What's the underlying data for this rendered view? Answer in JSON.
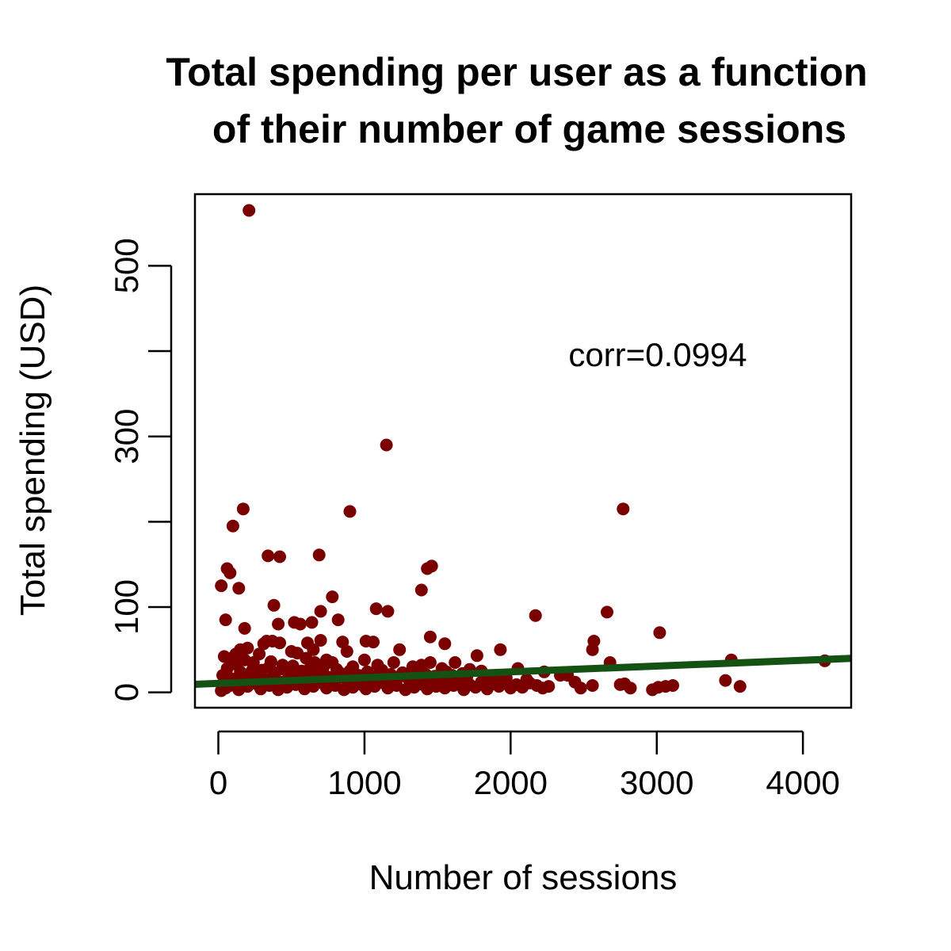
{
  "chart_data": {
    "type": "scatter",
    "title": [
      "Total spending per user as a function",
      "of their number of game sessions"
    ],
    "xlabel": "Number of sessions",
    "ylabel": "Total spending (USD)",
    "xlim": [
      -160,
      4330
    ],
    "ylim": [
      -18,
      584
    ],
    "xticks": [
      0,
      1000,
      2000,
      3000,
      4000
    ],
    "xtick_labels": [
      "0",
      "1000",
      "2000",
      "3000",
      "4000"
    ],
    "yticks": [
      0,
      100,
      200,
      300,
      400,
      500
    ],
    "ytick_labels": [
      "0",
      "100",
      "",
      "300",
      "",
      "500"
    ],
    "annotation": "corr=0.0994",
    "point_color": "#7a0000",
    "line_color": "#145214",
    "regression": {
      "slope": 0.00677,
      "intercept": 10.5
    },
    "points": [
      [
        210,
        565
      ],
      [
        1150,
        290
      ],
      [
        170,
        215
      ],
      [
        900,
        212
      ],
      [
        2770,
        215
      ],
      [
        100,
        195
      ],
      [
        340,
        160
      ],
      [
        420,
        159
      ],
      [
        690,
        161
      ],
      [
        80,
        140
      ],
      [
        60,
        145
      ],
      [
        140,
        122
      ],
      [
        20,
        125
      ],
      [
        1390,
        120
      ],
      [
        1430,
        145
      ],
      [
        1460,
        148
      ],
      [
        780,
        112
      ],
      [
        380,
        102
      ],
      [
        700,
        95
      ],
      [
        1080,
        98
      ],
      [
        1160,
        95
      ],
      [
        2170,
        90
      ],
      [
        2660,
        94
      ],
      [
        50,
        85
      ],
      [
        180,
        75
      ],
      [
        410,
        80
      ],
      [
        520,
        82
      ],
      [
        560,
        80
      ],
      [
        640,
        82
      ],
      [
        820,
        85
      ],
      [
        330,
        60
      ],
      [
        370,
        60
      ],
      [
        420,
        58
      ],
      [
        610,
        58
      ],
      [
        700,
        61
      ],
      [
        850,
        59
      ],
      [
        1010,
        60
      ],
      [
        1060,
        59
      ],
      [
        1450,
        65
      ],
      [
        1550,
        57
      ],
      [
        2570,
        60
      ],
      [
        3020,
        70
      ],
      [
        2560,
        50
      ],
      [
        1930,
        50
      ],
      [
        1770,
        43
      ],
      [
        1240,
        50
      ],
      [
        2680,
        35
      ],
      [
        3510,
        38
      ],
      [
        4150,
        37
      ],
      [
        40,
        42
      ],
      [
        90,
        40
      ],
      [
        120,
        45
      ],
      [
        150,
        50
      ],
      [
        200,
        52
      ],
      [
        240,
        35
      ],
      [
        280,
        45
      ],
      [
        310,
        57
      ],
      [
        350,
        30
      ],
      [
        440,
        32
      ],
      [
        500,
        48
      ],
      [
        540,
        46
      ],
      [
        600,
        40
      ],
      [
        650,
        50
      ],
      [
        740,
        38
      ],
      [
        780,
        35
      ],
      [
        880,
        48
      ],
      [
        920,
        30
      ],
      [
        1000,
        38
      ],
      [
        1090,
        32
      ],
      [
        1200,
        35
      ],
      [
        1330,
        30
      ],
      [
        1390,
        32
      ],
      [
        1450,
        35
      ],
      [
        1530,
        28
      ],
      [
        1620,
        35
      ],
      [
        1670,
        22
      ],
      [
        1720,
        27
      ],
      [
        1800,
        25
      ],
      [
        1900,
        20
      ],
      [
        1970,
        17
      ],
      [
        2050,
        28
      ],
      [
        2110,
        15
      ],
      [
        2230,
        24
      ],
      [
        2260,
        7
      ],
      [
        2340,
        20
      ],
      [
        2390,
        20
      ],
      [
        2440,
        12
      ],
      [
        2480,
        5
      ],
      [
        2560,
        8
      ],
      [
        2750,
        9
      ],
      [
        2780,
        10
      ],
      [
        2820,
        5
      ],
      [
        2970,
        3
      ],
      [
        3010,
        6
      ],
      [
        3060,
        7
      ],
      [
        3110,
        8
      ],
      [
        3470,
        14
      ],
      [
        3570,
        7
      ],
      [
        20,
        2
      ],
      [
        50,
        5
      ],
      [
        80,
        8
      ],
      [
        110,
        12
      ],
      [
        140,
        3
      ],
      [
        170,
        18
      ],
      [
        200,
        7
      ],
      [
        230,
        25
      ],
      [
        260,
        10
      ],
      [
        290,
        4
      ],
      [
        320,
        15
      ],
      [
        350,
        8
      ],
      [
        380,
        20
      ],
      [
        410,
        3
      ],
      [
        440,
        12
      ],
      [
        470,
        6
      ],
      [
        500,
        22
      ],
      [
        530,
        9
      ],
      [
        560,
        14
      ],
      [
        590,
        4
      ],
      [
        620,
        18
      ],
      [
        650,
        7
      ],
      [
        680,
        25
      ],
      [
        710,
        11
      ],
      [
        740,
        5
      ],
      [
        770,
        16
      ],
      [
        800,
        8
      ],
      [
        830,
        20
      ],
      [
        860,
        3
      ],
      [
        890,
        13
      ],
      [
        920,
        6
      ],
      [
        950,
        18
      ],
      [
        980,
        9
      ],
      [
        1010,
        4
      ],
      [
        1040,
        15
      ],
      [
        1070,
        7
      ],
      [
        1100,
        22
      ],
      [
        1130,
        11
      ],
      [
        1160,
        5
      ],
      [
        1190,
        14
      ],
      [
        1220,
        8
      ],
      [
        1250,
        19
      ],
      [
        1280,
        3
      ],
      [
        1310,
        12
      ],
      [
        1340,
        6
      ],
      [
        1370,
        17
      ],
      [
        1400,
        9
      ],
      [
        1430,
        4
      ],
      [
        1460,
        13
      ],
      [
        1490,
        7
      ],
      [
        1520,
        16
      ],
      [
        1550,
        5
      ],
      [
        1580,
        11
      ],
      [
        1610,
        8
      ],
      [
        1640,
        14
      ],
      [
        1680,
        3
      ],
      [
        1720,
        9
      ],
      [
        1760,
        6
      ],
      [
        1800,
        12
      ],
      [
        1840,
        4
      ],
      [
        1880,
        10
      ],
      [
        1920,
        7
      ],
      [
        1960,
        13
      ],
      [
        2000,
        5
      ],
      [
        2040,
        9
      ],
      [
        2080,
        6
      ],
      [
        2130,
        11
      ],
      [
        2180,
        8
      ],
      [
        2220,
        5
      ],
      [
        30,
        20
      ],
      [
        60,
        28
      ],
      [
        90,
        16
      ],
      [
        120,
        33
      ],
      [
        150,
        24
      ],
      [
        180,
        38
      ],
      [
        210,
        19
      ],
      [
        240,
        29
      ],
      [
        270,
        14
      ],
      [
        300,
        26
      ],
      [
        360,
        36
      ],
      [
        390,
        23
      ],
      [
        450,
        27
      ],
      [
        480,
        17
      ],
      [
        510,
        31
      ],
      [
        570,
        25
      ],
      [
        630,
        29
      ],
      [
        660,
        35
      ],
      [
        690,
        21
      ],
      [
        720,
        30
      ],
      [
        750,
        18
      ],
      [
        810,
        27
      ],
      [
        840,
        22
      ],
      [
        870,
        16
      ],
      [
        900,
        25
      ],
      [
        960,
        20
      ],
      [
        1020,
        24
      ],
      [
        1050,
        17
      ],
      [
        1120,
        26
      ],
      [
        1180,
        21
      ],
      [
        1260,
        23
      ],
      [
        1300,
        18
      ],
      [
        1360,
        25
      ],
      [
        1420,
        21
      ],
      [
        1480,
        19
      ],
      [
        1560,
        24
      ],
      [
        1600,
        20
      ],
      [
        1700,
        18
      ],
      [
        1860,
        17
      ]
    ]
  }
}
